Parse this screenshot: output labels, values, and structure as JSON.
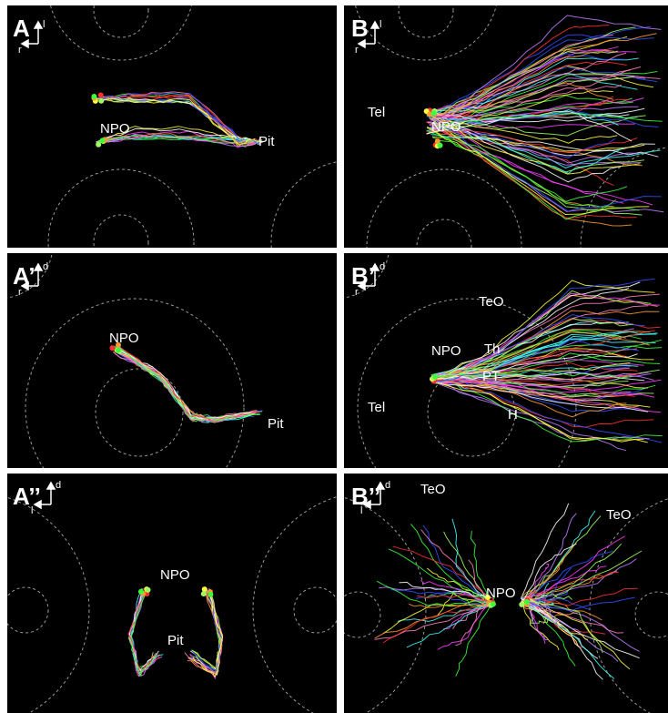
{
  "panels": [
    {
      "id": "A",
      "label": "A",
      "axis_v": "l",
      "axis_h": "r",
      "regions": [
        "NPO",
        "Pit"
      ]
    },
    {
      "id": "B",
      "label": "B",
      "axis_v": "l",
      "axis_h": "r",
      "regions": [
        "Tel",
        "NPO"
      ]
    },
    {
      "id": "A1",
      "label": "A’",
      "axis_v": "d",
      "axis_h": "r",
      "regions": [
        "NPO",
        "Pit"
      ]
    },
    {
      "id": "B1",
      "label": "B’",
      "axis_v": "d",
      "axis_h": "r",
      "regions": [
        "TeO",
        "NPO",
        "Th",
        "PT",
        "Tel",
        "H"
      ]
    },
    {
      "id": "A2",
      "label": "A’’",
      "axis_v": "d",
      "axis_h": "l",
      "regions": [
        "NPO",
        "Pit"
      ]
    },
    {
      "id": "B2",
      "label": "B’’",
      "axis_v": "d",
      "axis_h": "l",
      "regions": [
        "TeO",
        "TeO",
        "NPO"
      ]
    }
  ],
  "colors": {
    "background": "#000000",
    "divider": "#ffffff",
    "text": "#ffffff",
    "neurite_palette": [
      "#ff3030",
      "#3cff3c",
      "#3050ff",
      "#ffff40",
      "#ff40ff",
      "#40ffff",
      "#ff9930",
      "#c080ff",
      "#ff80c0",
      "#a0ff60",
      "#ffffff"
    ]
  }
}
